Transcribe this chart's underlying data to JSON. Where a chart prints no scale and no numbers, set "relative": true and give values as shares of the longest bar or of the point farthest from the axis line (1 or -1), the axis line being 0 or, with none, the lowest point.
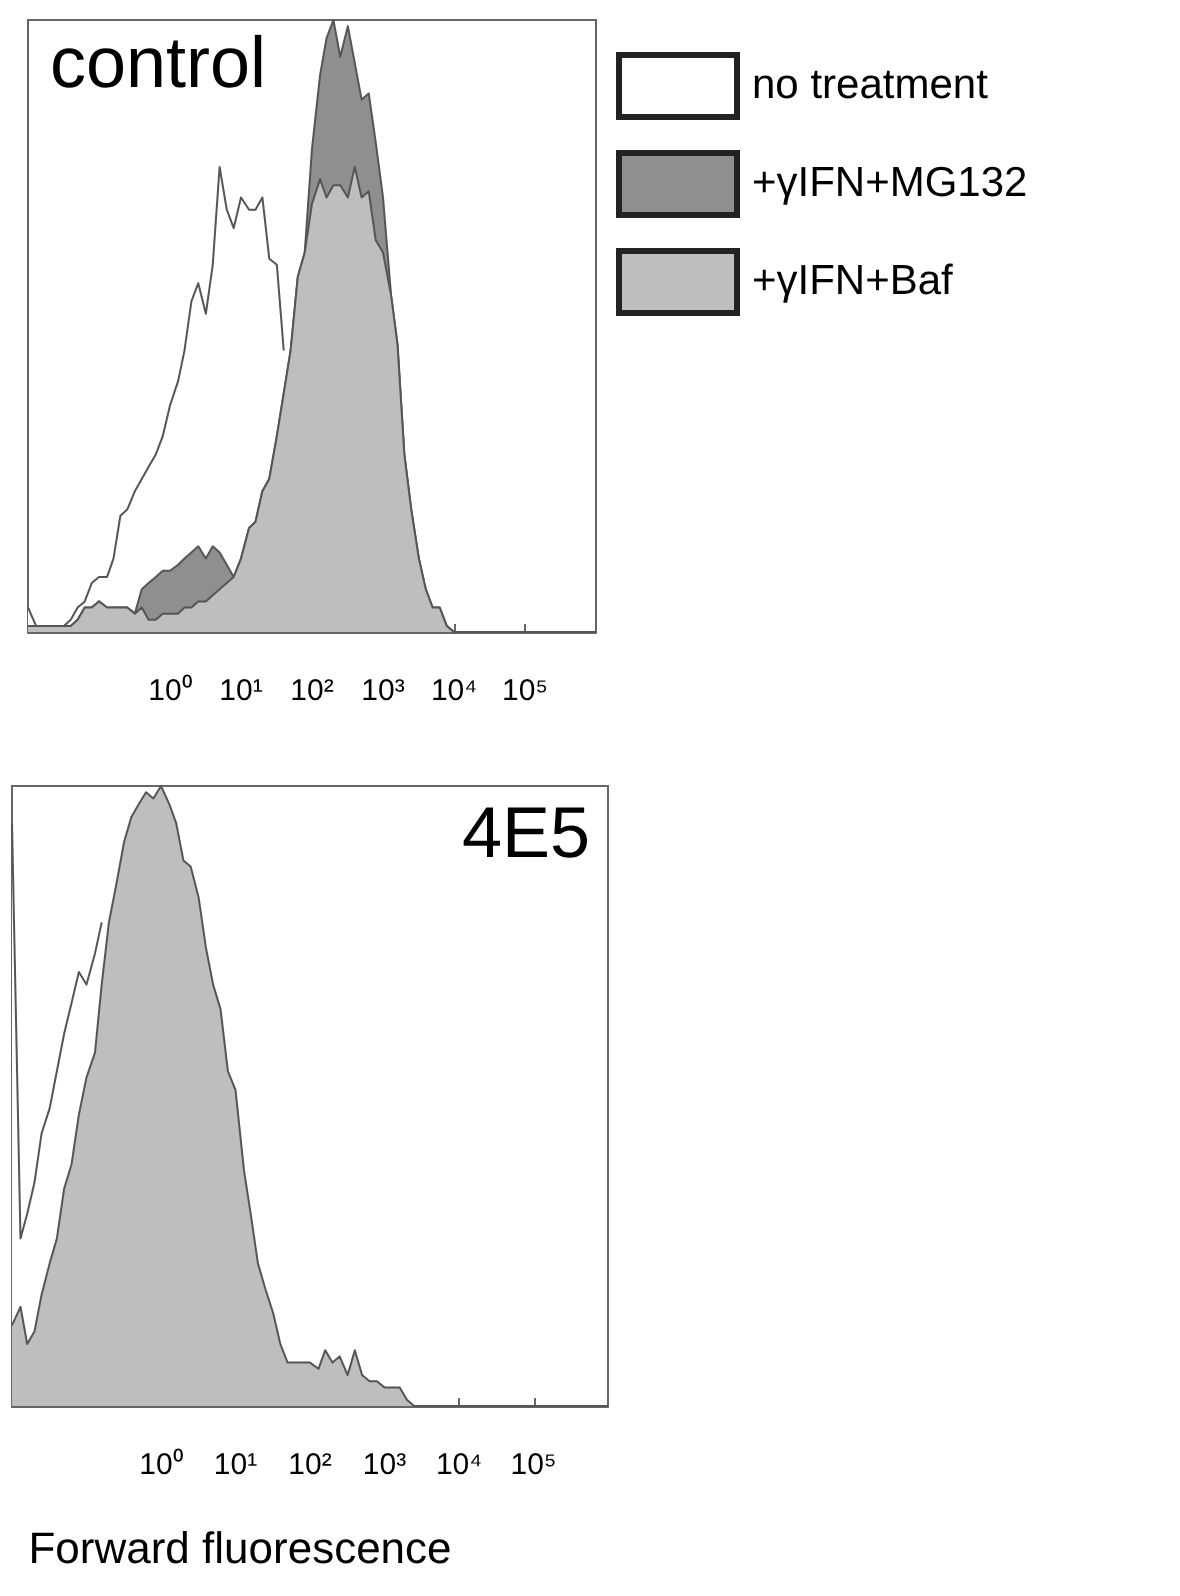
{
  "chart_data": [
    {
      "type": "area",
      "title": "control",
      "relative": true,
      "legend": "top right",
      "tick_labels": "x",
      "xlim": [
        0.01,
        1000000
      ],
      "log": "x",
      "xticks": [
        {
          "value": 0.1,
          "label": null
        },
        {
          "value": 1,
          "label": "10⁰"
        },
        {
          "value": 10,
          "label": "10¹"
        },
        {
          "value": 100,
          "label": "10²"
        },
        {
          "value": 1000,
          "label": "10³"
        },
        {
          "value": 10000,
          "label": "10⁴"
        },
        {
          "value": 100000,
          "label": "10⁵"
        }
      ],
      "x": [
        0.01,
        0.013,
        0.016,
        0.02,
        0.025,
        0.032,
        0.04,
        0.05,
        0.063,
        0.079,
        0.1,
        0.13,
        0.16,
        0.2,
        0.25,
        0.32,
        0.4,
        0.5,
        0.63,
        0.79,
        1,
        1.3,
        1.6,
        2,
        2.5,
        3.2,
        4,
        5,
        6.3,
        7.9,
        10,
        13,
        16,
        20,
        25,
        32,
        40,
        50,
        63,
        79,
        100,
        130,
        160,
        200,
        250,
        320,
        400,
        500,
        630,
        790,
        1000,
        1300,
        1600,
        2000,
        2500,
        3200,
        4000,
        5000,
        6300,
        7900,
        10000,
        100000,
        1000000
      ],
      "series": [
        {
          "name": "no treatment",
          "color": "#ffffff",
          "values": [
            0.04,
            0.01,
            0.01,
            0.01,
            0.01,
            0.01,
            0.02,
            0.04,
            0.05,
            0.08,
            0.09,
            0.09,
            0.12,
            0.19,
            0.2,
            0.23,
            0.25,
            0.27,
            0.29,
            0.32,
            0.37,
            0.41,
            0.46,
            0.54,
            0.57,
            0.52,
            0.6,
            0.76,
            0.69,
            0.66,
            0.71,
            0.69,
            0.69,
            0.71,
            0.61,
            0.6,
            0.46,
            null,
            null,
            null,
            null,
            null,
            null,
            null,
            null,
            null,
            null,
            null,
            null,
            null,
            null,
            null,
            null,
            null,
            null,
            null,
            null,
            null,
            null,
            null,
            null,
            null,
            null
          ]
        },
        {
          "name": "+γIFN+MG132",
          "color": "#8f8f8f",
          "values": [
            0.01,
            0.01,
            0.01,
            0.01,
            0.01,
            0.01,
            0.01,
            0.02,
            0.04,
            0.04,
            0.05,
            0.04,
            0.04,
            0.04,
            0.04,
            0.03,
            0.07,
            0.08,
            0.09,
            0.1,
            0.1,
            0.11,
            0.12,
            0.13,
            0.14,
            0.12,
            0.14,
            0.13,
            0.11,
            0.09,
            0.12,
            0.17,
            0.18,
            0.23,
            0.25,
            0.32,
            0.39,
            0.46,
            0.58,
            0.62,
            0.79,
            0.91,
            0.97,
            1,
            0.94,
            0.99,
            0.93,
            0.87,
            0.88,
            0.8,
            0.71,
            0.55,
            0.47,
            0.29,
            0.2,
            0.12,
            0.07,
            0.04,
            0.04,
            0.01,
            0,
            0,
            0
          ]
        },
        {
          "name": "+γIFN+Baf",
          "color": "#bebebe",
          "values": [
            0.01,
            0.01,
            0.01,
            0.01,
            0.01,
            0.01,
            0.01,
            0.02,
            0.04,
            0.04,
            0.05,
            0.04,
            0.04,
            0.04,
            0.04,
            0.03,
            0.04,
            0.02,
            0.02,
            0.03,
            0.03,
            0.03,
            0.04,
            0.04,
            0.05,
            0.05,
            0.06,
            0.07,
            0.08,
            0.09,
            0.12,
            0.17,
            0.18,
            0.23,
            0.25,
            0.32,
            0.39,
            0.46,
            0.58,
            0.62,
            0.7,
            0.74,
            0.71,
            0.73,
            0.73,
            0.71,
            0.76,
            0.71,
            0.72,
            0.64,
            0.62,
            0.55,
            0.47,
            0.29,
            0.2,
            0.12,
            0.07,
            0.04,
            0.04,
            0.01,
            0,
            0,
            0
          ]
        }
      ]
    },
    {
      "type": "area",
      "title": "4E5",
      "relative": true,
      "tick_labels": "x",
      "xlabel": "Forward fluorescence",
      "xlim": [
        0.01,
        1000000
      ],
      "log": "x",
      "xticks": [
        {
          "value": 0.1,
          "label": null
        },
        {
          "value": 1,
          "label": "10⁰"
        },
        {
          "value": 10,
          "label": "10¹"
        },
        {
          "value": 100,
          "label": "10²"
        },
        {
          "value": 1000,
          "label": "10³"
        },
        {
          "value": 10000,
          "label": "10⁴"
        },
        {
          "value": 100000,
          "label": "10⁵"
        }
      ],
      "x": [
        0.01,
        0.013,
        0.016,
        0.02,
        0.025,
        0.032,
        0.04,
        0.05,
        0.063,
        0.079,
        0.1,
        0.13,
        0.16,
        0.2,
        0.25,
        0.32,
        0.4,
        0.5,
        0.63,
        0.79,
        1,
        1.3,
        1.6,
        2,
        2.5,
        3.2,
        4,
        5,
        6.3,
        7.9,
        10,
        13,
        16,
        20,
        25,
        32,
        40,
        50,
        63,
        79,
        100,
        130,
        160,
        200,
        250,
        320,
        400,
        500,
        630,
        790,
        1000,
        1300,
        1600,
        2000,
        2500,
        3200,
        4000,
        5000,
        6300,
        7900,
        10000,
        100000,
        1000000
      ],
      "series": [
        {
          "color": "#ffffff",
          "values": [
            0.94,
            0.27,
            0.31,
            0.36,
            0.44,
            0.48,
            0.54,
            0.6,
            0.65,
            0.7,
            0.68,
            0.73,
            0.78,
            null,
            null,
            null,
            null,
            null,
            null,
            null,
            null,
            null,
            null,
            null,
            null,
            null,
            null,
            null,
            null,
            null,
            null,
            null,
            null,
            null,
            null,
            null,
            null,
            null,
            null,
            null,
            null,
            null,
            null,
            null,
            null,
            null,
            null,
            null,
            null,
            null,
            null,
            null,
            null,
            null,
            null,
            null,
            null,
            null,
            null,
            null,
            null,
            null,
            null
          ]
        },
        {
          "color": "#bebebe",
          "values": [
            0.13,
            0.16,
            0.1,
            0.12,
            0.18,
            0.23,
            0.27,
            0.35,
            0.39,
            0.47,
            0.53,
            0.57,
            0.68,
            0.78,
            0.84,
            0.91,
            0.95,
            0.97,
            0.99,
            0.98,
            1,
            0.97,
            0.94,
            0.88,
            0.87,
            0.82,
            0.74,
            0.68,
            0.64,
            0.54,
            0.51,
            0.38,
            0.31,
            0.23,
            0.19,
            0.15,
            0.1,
            0.07,
            0.07,
            0.07,
            0.07,
            0.06,
            0.09,
            0.07,
            0.08,
            0.05,
            0.09,
            0.05,
            0.04,
            0.04,
            0.03,
            0.03,
            0.03,
            0.01,
            0,
            0,
            0,
            0,
            0,
            0,
            0,
            0,
            0
          ]
        }
      ]
    }
  ]
}
